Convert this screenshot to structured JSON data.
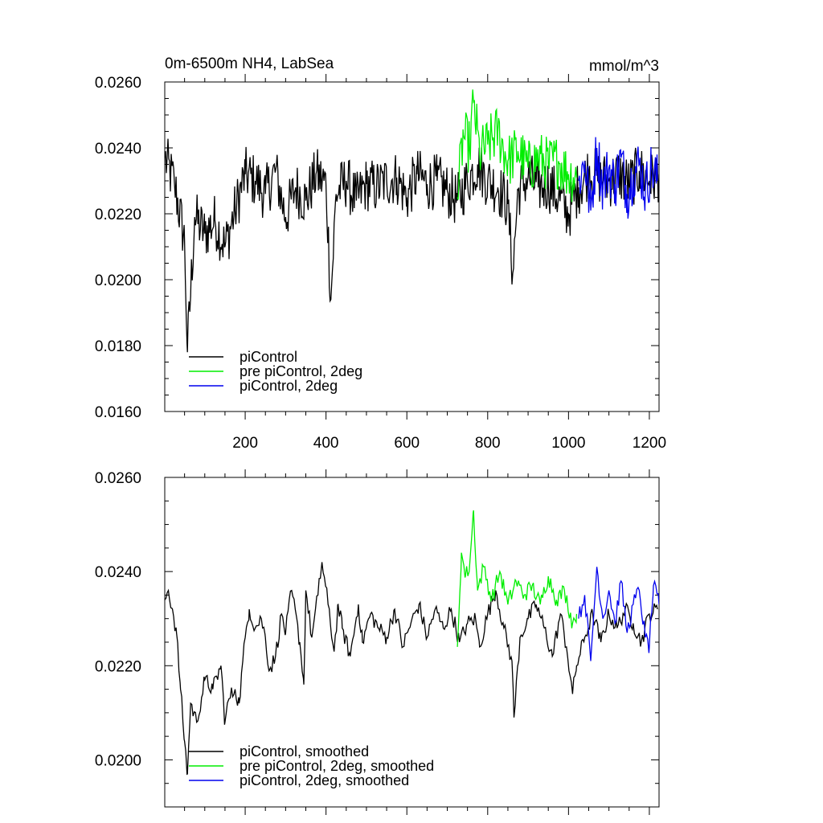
{
  "chart_data": [
    {
      "type": "line",
      "title": "0m-6500m NH4, LabSea",
      "units": "mmol/m^3",
      "xlabel": "",
      "ylabel": "",
      "xlim": [
        1,
        1224
      ],
      "ylim": [
        0.016,
        0.026
      ],
      "xticks": [
        200,
        400,
        600,
        800,
        1000,
        1200
      ],
      "xtick_labels": [
        "200",
        "400",
        "600",
        "800",
        "1000",
        "1200"
      ],
      "yticks": [
        0.016,
        0.018,
        0.02,
        0.022,
        0.024,
        0.026
      ],
      "ytick_labels": [
        "0.0160",
        "0.0180",
        "0.0200",
        "0.0220",
        "0.0240",
        "0.0260"
      ],
      "legend_position": "bottom-left",
      "colors": {
        "piControl": "#000000",
        "pre_piControl_2deg": "#00ee00",
        "piControl_2deg": "#0000ee"
      },
      "series": [
        {
          "name": "piControl",
          "color": "#000000",
          "x": [
            1,
            25,
            50,
            57,
            75,
            100,
            125,
            150,
            175,
            200,
            225,
            250,
            275,
            300,
            325,
            350,
            375,
            400,
            412,
            425,
            450,
            475,
            500,
            525,
            550,
            575,
            600,
            625,
            650,
            675,
            700,
            725,
            750,
            775,
            800,
            825,
            850,
            862,
            875,
            900,
            925,
            950,
            975,
            1000,
            1025,
            1050,
            1075,
            1100,
            1125,
            1150,
            1175,
            1200,
            1224
          ],
          "y": [
            0.0237,
            0.0229,
            0.0212,
            0.0178,
            0.0219,
            0.0214,
            0.0218,
            0.021,
            0.0221,
            0.0232,
            0.023,
            0.0226,
            0.0233,
            0.0219,
            0.0228,
            0.0224,
            0.0232,
            0.0229,
            0.0194,
            0.0226,
            0.023,
            0.0224,
            0.0229,
            0.0228,
            0.023,
            0.0231,
            0.0225,
            0.0232,
            0.0229,
            0.023,
            0.0227,
            0.0224,
            0.023,
            0.0235,
            0.023,
            0.0228,
            0.0223,
            0.0202,
            0.0227,
            0.0231,
            0.0228,
            0.0229,
            0.0225,
            0.022,
            0.0228,
            0.0233,
            0.0231,
            0.023,
            0.0232,
            0.0229,
            0.0233,
            0.023,
            0.0232
          ]
        },
        {
          "name": "pre piControl, 2deg",
          "color": "#00ee00",
          "x": [
            725,
            740,
            755,
            765,
            780,
            800,
            825,
            850,
            875,
            900,
            925,
            950,
            975,
            1000,
            1020
          ],
          "y": [
            0.0225,
            0.0244,
            0.024,
            0.0254,
            0.0238,
            0.0241,
            0.0245,
            0.0236,
            0.0239,
            0.0234,
            0.0237,
            0.0235,
            0.0236,
            0.0232,
            0.0231
          ]
        },
        {
          "name": "piControl, 2deg",
          "color": "#0000ee",
          "x": [
            1025,
            1040,
            1055,
            1070,
            1085,
            1100,
            1115,
            1130,
            1145,
            1160,
            1175,
            1190,
            1205,
            1220
          ],
          "y": [
            0.023,
            0.0236,
            0.0221,
            0.024,
            0.0228,
            0.0234,
            0.0229,
            0.0237,
            0.0226,
            0.0232,
            0.0235,
            0.0227,
            0.0234,
            0.023
          ]
        }
      ]
    },
    {
      "type": "line",
      "title": "",
      "xlabel": "",
      "ylabel": "",
      "xlim": [
        1,
        1224
      ],
      "ylim": [
        0.019,
        0.026
      ],
      "yticks": [
        0.02,
        0.022,
        0.024,
        0.026
      ],
      "ytick_labels": [
        "0.0200",
        "0.0220",
        "0.0240",
        "0.0260"
      ],
      "legend_position": "bottom-left",
      "series": [
        {
          "name": "piControl, smoothed",
          "color": "#000000",
          "x": [
            1,
            10,
            20,
            30,
            40,
            50,
            57,
            65,
            80,
            100,
            120,
            140,
            150,
            160,
            175,
            185,
            200,
            210,
            225,
            240,
            250,
            260,
            275,
            290,
            300,
            315,
            335,
            345,
            350,
            365,
            380,
            390,
            405,
            420,
            430,
            440,
            460,
            480,
            490,
            510,
            530,
            550,
            570,
            590,
            610,
            630,
            650,
            670,
            690,
            710,
            730,
            750,
            770,
            780,
            800,
            820,
            840,
            860,
            865,
            880,
            900,
            920,
            940,
            960,
            980,
            995,
            1010,
            1020,
            1040,
            1060,
            1080,
            1100,
            1120,
            1140,
            1160,
            1180,
            1200,
            1220
          ],
          "y": [
            0.0234,
            0.0236,
            0.0232,
            0.0227,
            0.0215,
            0.0204,
            0.0197,
            0.0212,
            0.0208,
            0.0217,
            0.0215,
            0.022,
            0.0208,
            0.0213,
            0.0215,
            0.0212,
            0.0226,
            0.0232,
            0.0228,
            0.023,
            0.0226,
            0.0219,
            0.0222,
            0.0231,
            0.0227,
            0.0236,
            0.0225,
            0.0216,
            0.0236,
            0.0226,
            0.0235,
            0.0242,
            0.0233,
            0.0223,
            0.0233,
            0.0228,
            0.0222,
            0.0233,
            0.0225,
            0.0231,
            0.0228,
            0.0226,
            0.0232,
            0.0224,
            0.0229,
            0.0233,
            0.0226,
            0.0232,
            0.0228,
            0.0232,
            0.0225,
            0.0229,
            0.023,
            0.0224,
            0.0231,
            0.0236,
            0.0228,
            0.0221,
            0.0209,
            0.0226,
            0.023,
            0.0233,
            0.0228,
            0.0222,
            0.0231,
            0.0224,
            0.0214,
            0.022,
            0.0226,
            0.0231,
            0.0225,
            0.0231,
            0.0228,
            0.0232,
            0.0229,
            0.0225,
            0.0231,
            0.0232
          ]
        },
        {
          "name": "pre piControl, 2deg, smoothed",
          "color": "#00ee00",
          "x": [
            725,
            735,
            745,
            755,
            765,
            775,
            790,
            810,
            830,
            850,
            870,
            890,
            910,
            930,
            950,
            970,
            990,
            1010,
            1020
          ],
          "y": [
            0.0224,
            0.0244,
            0.0239,
            0.0241,
            0.0253,
            0.0236,
            0.0241,
            0.0234,
            0.024,
            0.0233,
            0.0238,
            0.0235,
            0.0237,
            0.0233,
            0.0239,
            0.0234,
            0.0236,
            0.0229,
            0.0231
          ]
        },
        {
          "name": "piControl, 2deg, smoothed",
          "color": "#0000ee",
          "x": [
            1025,
            1040,
            1055,
            1070,
            1085,
            1100,
            1115,
            1130,
            1145,
            1160,
            1175,
            1190,
            1200,
            1210,
            1224
          ],
          "y": [
            0.023,
            0.0235,
            0.0221,
            0.0241,
            0.023,
            0.0236,
            0.0229,
            0.0238,
            0.0227,
            0.0233,
            0.0236,
            0.0226,
            0.0224,
            0.0237,
            0.0233
          ]
        }
      ]
    }
  ]
}
